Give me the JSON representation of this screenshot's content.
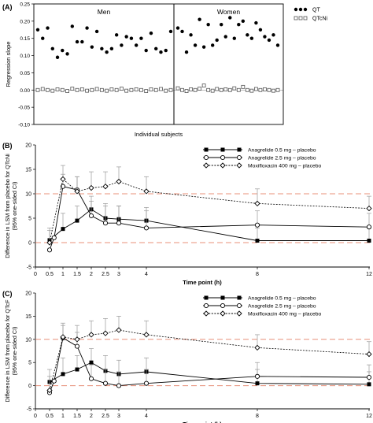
{
  "chart_data": [
    {
      "type": "scatter",
      "panel_label": "(A)",
      "ylabel": "Regression slope",
      "xlabel": "Individual subjects",
      "ylim": [
        -0.1,
        0.25
      ],
      "yticks": [
        -0.1,
        -0.05,
        0.0,
        0.05,
        0.1,
        0.15,
        0.2,
        0.25
      ],
      "ytick_labels": [
        "-0.10",
        "-0.05",
        "0.00",
        "0.05",
        "0.10",
        "0.15",
        "0.20",
        "0.25"
      ],
      "group_labels": [
        "Men",
        "Women"
      ],
      "legend": [
        "QT",
        "QTcNi"
      ],
      "legend_position": "top-right",
      "series": [
        {
          "name": "QT",
          "marker": "filled-circle",
          "men": [
            0.175,
            0.15,
            0.18,
            0.12,
            0.095,
            0.115,
            0.105,
            0.185,
            0.14,
            0.14,
            0.18,
            0.125,
            0.17,
            0.12,
            0.11,
            0.12,
            0.16,
            0.13,
            0.155,
            0.15,
            0.13,
            0.15,
            0.115,
            0.165,
            0.12,
            0.11,
            0.115,
            0.17
          ],
          "women": [
            0.18,
            0.17,
            0.11,
            0.16,
            0.13,
            0.205,
            0.125,
            0.19,
            0.13,
            0.145,
            0.19,
            0.155,
            0.21,
            0.15,
            0.19,
            0.2,
            0.16,
            0.15,
            0.195,
            0.175,
            0.155,
            0.145,
            0.16,
            0.13
          ]
        },
        {
          "name": "QTcNi",
          "marker": "open-square",
          "men": [
            0.0,
            0.003,
            0.0,
            -0.002,
            0.002,
            0.0,
            -0.003,
            0.004,
            0.0,
            0.002,
            -0.002,
            0.0,
            0.003,
            0.0,
            -0.002,
            0.002,
            0.0,
            0.004,
            -0.002,
            0.0,
            0.002,
            0.0,
            -0.003,
            0.002,
            0.0,
            0.003,
            -0.002,
            0.0
          ],
          "women": [
            0.005,
            0.0,
            -0.003,
            0.002,
            0.0,
            0.004,
            0.013,
            0.0,
            -0.002,
            0.003,
            0.0,
            0.002,
            0.0,
            0.005,
            0.0,
            0.009,
            0.0,
            -0.002,
            0.003,
            0.0,
            0.002,
            0.0,
            -0.002,
            0.0
          ]
        }
      ]
    },
    {
      "type": "line",
      "panel_label": "(B)",
      "ylabel": "Difference in LSM from placebo for QTcNi (95% one-sided CI)",
      "ylabel_lines": [
        "Difference in LSM from placebo for QTcNi",
        "(95% one-sided CI)"
      ],
      "xlabel": "Time point (h)",
      "ylim": [
        -5,
        20
      ],
      "yticks": [
        -5,
        0,
        5,
        10,
        15,
        20
      ],
      "xlim": [
        0,
        12
      ],
      "xticks": [
        0,
        0.5,
        1,
        1.5,
        2,
        2.5,
        3,
        4,
        8,
        12
      ],
      "xtick_labels": [
        "0",
        "0.5",
        "1",
        "1.5",
        "2",
        "2.5",
        "3",
        "4",
        "8",
        "12"
      ],
      "reference_lines": [
        0,
        10
      ],
      "legend_position": "top-right",
      "series": [
        {
          "name": "Anagrelide 0.5 mg – placebo",
          "style": "solid",
          "marker": "filled-square",
          "x": [
            0.5,
            1,
            1.5,
            2,
            2.5,
            3,
            4,
            8,
            12
          ],
          "y": [
            0.5,
            2.8,
            4.5,
            6.8,
            5.0,
            4.8,
            4.5,
            0.4,
            0.4
          ],
          "ci_upper": [
            3.0,
            6.0,
            7.5,
            9.5,
            8.0,
            7.5,
            7.2,
            3.0,
            3.0
          ]
        },
        {
          "name": "Anagrelide 2.5 mg – placebo",
          "style": "solid",
          "marker": "open-circle",
          "x": [
            0.5,
            0.67,
            1,
            1.5,
            2,
            2.5,
            3,
            4,
            8,
            12
          ],
          "y": [
            -1.5,
            1.0,
            11.5,
            10.8,
            5.5,
            4.0,
            4.0,
            3.0,
            3.6,
            3.2
          ],
          "ci_upper": [
            null,
            null,
            14.0,
            13.5,
            8.5,
            7.5,
            7.5,
            6.5,
            6.5,
            6.0
          ]
        },
        {
          "name": "Moxifloxacin 400 mg – placebo",
          "style": "dashed",
          "marker": "open-diamond",
          "x": [
            0.5,
            1,
            1.5,
            2,
            2.5,
            3,
            4,
            8,
            12
          ],
          "y": [
            0.0,
            13.0,
            10.5,
            11.2,
            11.5,
            12.5,
            10.5,
            8.0,
            7.0
          ],
          "ci_upper": [
            2.5,
            15.8,
            13.5,
            14.5,
            14.5,
            15.5,
            13.5,
            11.0,
            9.5
          ]
        }
      ]
    },
    {
      "type": "line",
      "panel_label": "(C)",
      "ylabel": "Difference in LSM from placebo for QTcF (95% one-sided CI)",
      "ylabel_lines": [
        "Difference in LSM from placebo for QTcF",
        "(95% one-sided CI)"
      ],
      "xlabel": "Time point (h)",
      "ylim": [
        -5,
        20
      ],
      "yticks": [
        -5,
        0,
        5,
        10,
        15,
        20
      ],
      "xlim": [
        0,
        12
      ],
      "xticks": [
        0,
        0.5,
        1,
        1.5,
        2,
        2.5,
        3,
        4,
        8,
        12
      ],
      "xtick_labels": [
        "0",
        "0.5",
        "1",
        "1.5",
        "2",
        "2.5",
        "3",
        "4",
        "8",
        "12"
      ],
      "reference_lines": [
        0,
        10
      ],
      "legend_position": "top-right",
      "series": [
        {
          "name": "Anagrelide 0.5 mg – placebo",
          "style": "solid",
          "marker": "filled-square",
          "x": [
            0.5,
            1,
            1.5,
            2,
            2.5,
            3,
            4,
            8,
            12
          ],
          "y": [
            0.8,
            2.5,
            3.5,
            5.0,
            3.2,
            2.5,
            3.0,
            0.5,
            0.3
          ],
          "ci_upper": [
            3.5,
            6.0,
            6.5,
            8.0,
            6.5,
            5.5,
            6.0,
            3.5,
            3.0
          ]
        },
        {
          "name": "Anagrelide 2.5 mg – placebo",
          "style": "solid",
          "marker": "open-circle",
          "x": [
            0.5,
            0.67,
            1,
            1.5,
            2,
            2.5,
            3,
            4,
            8,
            12
          ],
          "y": [
            -1.5,
            1.0,
            10.3,
            8.5,
            1.5,
            0.5,
            0.0,
            0.5,
            2.0,
            1.8
          ],
          "ci_upper": [
            null,
            null,
            13.0,
            11.5,
            4.5,
            3.5,
            3.0,
            3.5,
            5.0,
            4.5
          ]
        },
        {
          "name": "Moxifloxacin 400 mg – placebo",
          "style": "dashed",
          "marker": "open-diamond",
          "x": [
            0.5,
            1,
            1.5,
            2,
            2.5,
            3,
            4,
            8,
            12
          ],
          "y": [
            -1.0,
            10.5,
            10.0,
            11.0,
            11.3,
            12.0,
            11.0,
            8.2,
            6.8
          ],
          "ci_upper": [
            2.0,
            13.5,
            13.0,
            14.0,
            14.5,
            15.0,
            14.0,
            11.0,
            9.5
          ]
        }
      ]
    }
  ]
}
